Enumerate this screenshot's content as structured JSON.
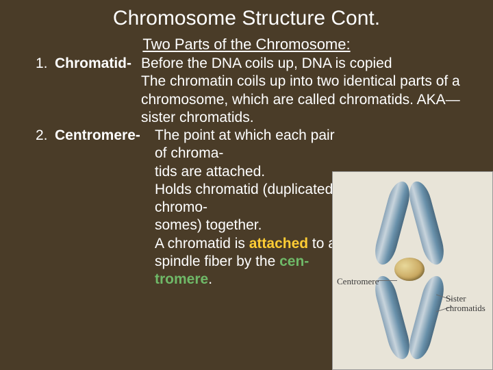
{
  "title": "Chromosome Structure Cont.",
  "subtitle": "Two Parts of the Chromosome:",
  "items": [
    {
      "num": "1.",
      "term": "Chromatid-",
      "desc_before": "Before the DNA coils up, DNA is copied\nThe chromatin coils up into two identical parts of a chromosome, which are called chromatids.  AKA—sister chromatids."
    },
    {
      "num": "2.",
      "term": "Centromere-",
      "desc_plain1": "The point at which each pair of chroma-\ntids are attached.\nHolds chromatid (duplicated chromo-\nsomes) together.\nA chromatid is ",
      "attached": "attached",
      "desc_plain2": " to a spindle fiber by the ",
      "cen": "cen-\ntromere",
      "period": "."
    }
  ],
  "diagram": {
    "label_centromere": "Centromere",
    "label_sister": "Sister chromatids",
    "colors": {
      "bg": "#e8e4d8",
      "chromatid_light": "#c8d4dc",
      "chromatid_dark": "#4a6a80",
      "centromere": "#c9a860"
    }
  },
  "colors": {
    "background": "#4a3c28",
    "text": "#ffffff",
    "highlight_yellow": "#ffcd34",
    "highlight_green": "#6fb968"
  }
}
